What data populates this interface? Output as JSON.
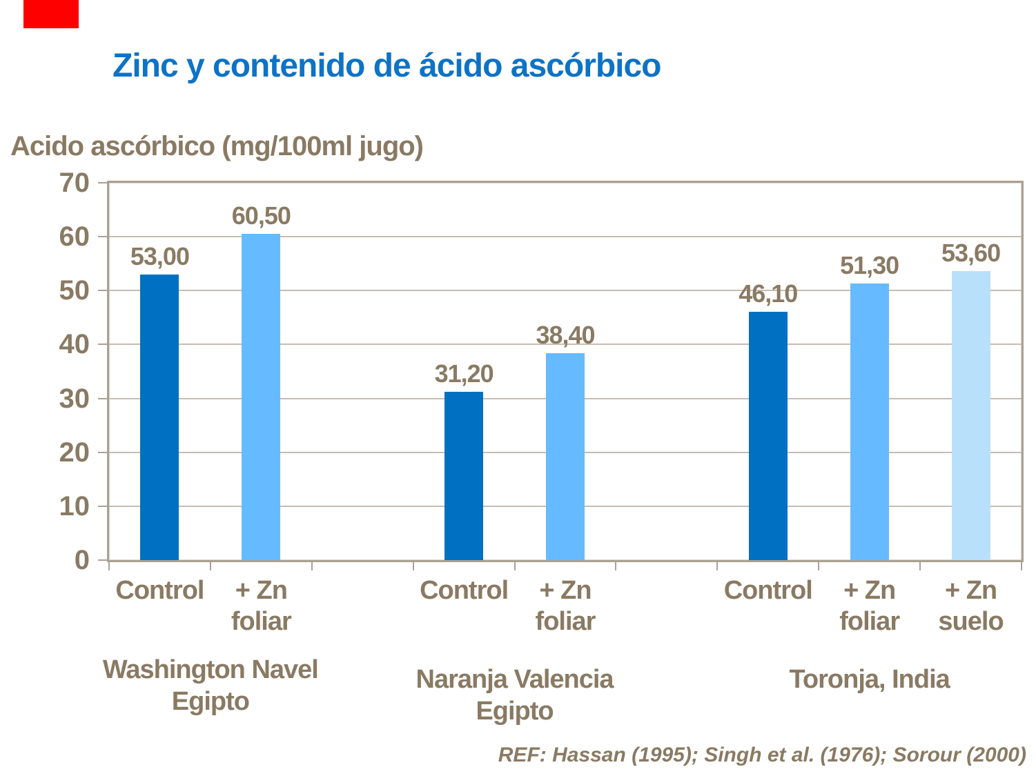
{
  "slide": {
    "title": "Zinc y contenido de ácido ascórbico",
    "title_color": "#0d73c6",
    "red_marker_color": "#fe0000",
    "text_color": "#8a7a63",
    "ref": "REF: Hassan (1995); Singh et al. (1976); Sorour (2000)"
  },
  "chart_data": {
    "type": "bar",
    "ylabel": "Acido ascórbico (mg/100ml jugo)",
    "ylim": [
      0,
      70
    ],
    "yticks": [
      0,
      10,
      20,
      30,
      40,
      50,
      60,
      70
    ],
    "grid": true,
    "legend_position": "none",
    "series_colors": {
      "control": "#0071c2",
      "zn_foliar": "#66baff",
      "zn_suelo": "#b9e0fb"
    },
    "groups": [
      {
        "name": "Washington Navel\nEgipto",
        "bars": [
          {
            "slot": 0,
            "category": "Control",
            "series": "control",
            "value": 53.0,
            "label": "53,00"
          },
          {
            "slot": 1,
            "category": "+ Zn\nfoliar",
            "series": "zn_foliar",
            "value": 60.5,
            "label": "60,50"
          }
        ]
      },
      {
        "name": "Naranja Valencia\nEgipto",
        "bars": [
          {
            "slot": 3,
            "category": "Control",
            "series": "control",
            "value": 31.2,
            "label": "31,20"
          },
          {
            "slot": 4,
            "category": "+ Zn\nfoliar",
            "series": "zn_foliar",
            "value": 38.4,
            "label": "38,40"
          }
        ]
      },
      {
        "name": "Toronja, India",
        "bars": [
          {
            "slot": 6,
            "category": "Control",
            "series": "control",
            "value": 46.1,
            "label": "46,10"
          },
          {
            "slot": 7,
            "category": "+ Zn\nfoliar",
            "series": "zn_foliar",
            "value": 51.3,
            "label": "51,30"
          },
          {
            "slot": 8,
            "category": "+ Zn\nsuelo",
            "series": "zn_suelo",
            "value": 53.6,
            "label": "53,60"
          }
        ]
      }
    ]
  }
}
